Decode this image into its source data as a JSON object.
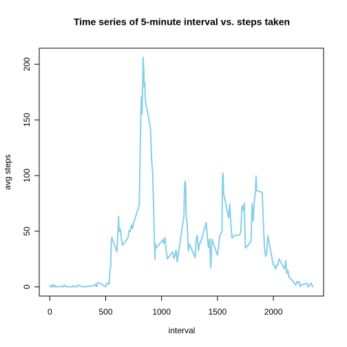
{
  "chart_data": {
    "type": "line",
    "title": "Time series of 5-minute interval vs. steps taken",
    "xlabel": "interval",
    "ylabel": "avg steps",
    "x": [
      0,
      5,
      10,
      15,
      20,
      25,
      30,
      35,
      40,
      45,
      50,
      55,
      100,
      110,
      120,
      130,
      140,
      150,
      200,
      210,
      220,
      230,
      240,
      250,
      300,
      320,
      340,
      400,
      410,
      420,
      430,
      440,
      450,
      500,
      510,
      520,
      530,
      540,
      545,
      550,
      555,
      600,
      610,
      615,
      620,
      630,
      640,
      650,
      700,
      710,
      720,
      730,
      740,
      750,
      800,
      810,
      815,
      820,
      825,
      830,
      835,
      840,
      845,
      850,
      855,
      900,
      910,
      915,
      920,
      930,
      940,
      945,
      950,
      1000,
      1010,
      1020,
      1030,
      1040,
      1050,
      1100,
      1110,
      1120,
      1130,
      1140,
      1200,
      1205,
      1210,
      1215,
      1220,
      1230,
      1240,
      1250,
      1300,
      1310,
      1320,
      1330,
      1340,
      1350,
      1400,
      1410,
      1420,
      1430,
      1440,
      1450,
      1500,
      1510,
      1520,
      1530,
      1540,
      1545,
      1550,
      1555,
      1600,
      1610,
      1620,
      1630,
      1640,
      1650,
      1700,
      1710,
      1720,
      1730,
      1740,
      1750,
      1800,
      1810,
      1820,
      1830,
      1840,
      1845,
      1850,
      1900,
      1910,
      1920,
      1930,
      1940,
      1950,
      2000,
      2010,
      2020,
      2030,
      2040,
      2050,
      2100,
      2110,
      2120,
      2130,
      2140,
      2150,
      2200,
      2210,
      2220,
      2230,
      2240,
      2250,
      2300,
      2310,
      2320,
      2330,
      2340,
      2350,
      2355
    ],
    "series": [
      {
        "name": "avg steps",
        "color": "#87ceeb",
        "values": [
          1.7,
          0.3,
          0.1,
          0.2,
          0.1,
          2.1,
          0.5,
          0.9,
          0,
          1.5,
          0.3,
          0.1,
          0.3,
          0.2,
          0,
          1.8,
          0.2,
          0.3,
          0,
          1.1,
          0,
          0,
          0,
          1.5,
          0,
          0.2,
          0.5,
          1.2,
          2.6,
          0.3,
          4.1,
          3.5,
          3.1,
          0,
          3,
          3.3,
          2.1,
          16,
          18.3,
          39.5,
          44.5,
          31.5,
          49.3,
          63.5,
          50,
          52.1,
          44,
          37.4,
          44,
          50.8,
          49.9,
          55.7,
          52.3,
          57.5,
          73.4,
          129.4,
          157.5,
          171.2,
          155.4,
          177.3,
          206.2,
          195.9,
          179.6,
          183.4,
          167,
          143.5,
          117,
          108.1,
          103.7,
          66.2,
          24.8,
          38.8,
          35,
          40.6,
          42.4,
          38.9,
          44.3,
          34,
          25.1,
          31.4,
          25.5,
          28.4,
          33.3,
          22.5,
          63.9,
          87.7,
          94.8,
          92.8,
          63.4,
          54.5,
          32.4,
          38.3,
          26.4,
          42.8,
          46.2,
          32.4,
          39.5,
          40,
          57.9,
          44,
          35.5,
          43,
          17.1,
          42.9,
          28.5,
          35.5,
          45.6,
          48.1,
          49.1,
          98.7,
          102.1,
          84,
          62.1,
          74.5,
          56.4,
          43.9,
          44.7,
          46.2,
          46.6,
          50.7,
          72.7,
          68.9,
          75.1,
          34.8,
          40.7,
          74.7,
          59.3,
          77.7,
          85.3,
          99.5,
          86.6,
          84.9,
          58,
          36.1,
          27.4,
          30,
          46,
          19.6,
          19.3,
          15.9,
          19.6,
          19.5,
          25.1,
          15.9,
          23.5,
          12.1,
          14.7,
          8.7,
          8.1,
          1.6,
          4.8,
          3.7,
          4.7,
          0.2,
          1.6,
          3.3,
          0,
          1,
          2.6,
          3.3,
          0.2,
          1.1
        ]
      }
    ],
    "xlim": [
      -94.2,
      2449.2
    ],
    "ylim": [
      -8.25,
      214.4
    ],
    "xticks": [
      0,
      500,
      1000,
      1500,
      2000
    ],
    "yticks": [
      0,
      50,
      100,
      150,
      200
    ]
  }
}
